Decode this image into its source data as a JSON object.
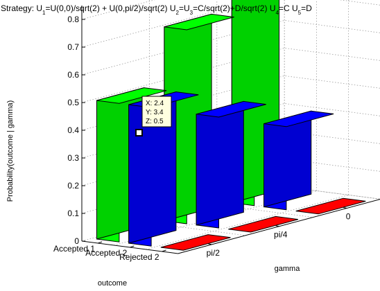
{
  "chart_data": {
    "type": "bar",
    "title_parts": [
      {
        "t": "Strategy: U"
      },
      {
        "t": "1",
        "sub": true
      },
      {
        "t": "=U(0,0)/sqrt(2) + U(0,pi/2)/sqrt(2) U"
      },
      {
        "t": "2",
        "sub": true
      },
      {
        "t": "=U"
      },
      {
        "t": "3",
        "sub": true
      },
      {
        "t": "=C/sqrt(2)+D/sqrt(2) U"
      },
      {
        "t": "4",
        "sub": true
      },
      {
        "t": "=C U"
      },
      {
        "t": "5",
        "sub": true
      },
      {
        "t": "=D"
      }
    ],
    "xlabel": "outcome",
    "ylabel": "gamma",
    "zlabel": "Probability(outcome | gamma)",
    "x_categories": [
      "Accepted 1",
      "Accepted 2",
      "Rejected 2"
    ],
    "y_categories": [
      "pi/2",
      "pi/4",
      "0"
    ],
    "zlim": [
      0,
      0.85
    ],
    "zticks": [
      "0",
      "0.1",
      "0.2",
      "0.3",
      "0.4",
      "0.5",
      "0.6",
      "0.7",
      "0.8"
    ],
    "grid": true,
    "series": [
      {
        "outcome": "Accepted 1",
        "color": "#00ff00",
        "values": [
          0.5,
          0.7,
          0.9
        ]
      },
      {
        "outcome": "Accepted 2",
        "color": "#0000ff",
        "values": [
          0.5,
          0.4,
          0.3
        ]
      },
      {
        "outcome": "Rejected 2",
        "color": "#ff0000",
        "values": [
          0,
          0,
          0
        ]
      }
    ],
    "datatip": {
      "x_label": "X: 2.4",
      "y_label": "Y: 3.4",
      "z_label": "Z: 0.5",
      "x": 2.4,
      "y": 3.4,
      "z": 0.5
    }
  }
}
